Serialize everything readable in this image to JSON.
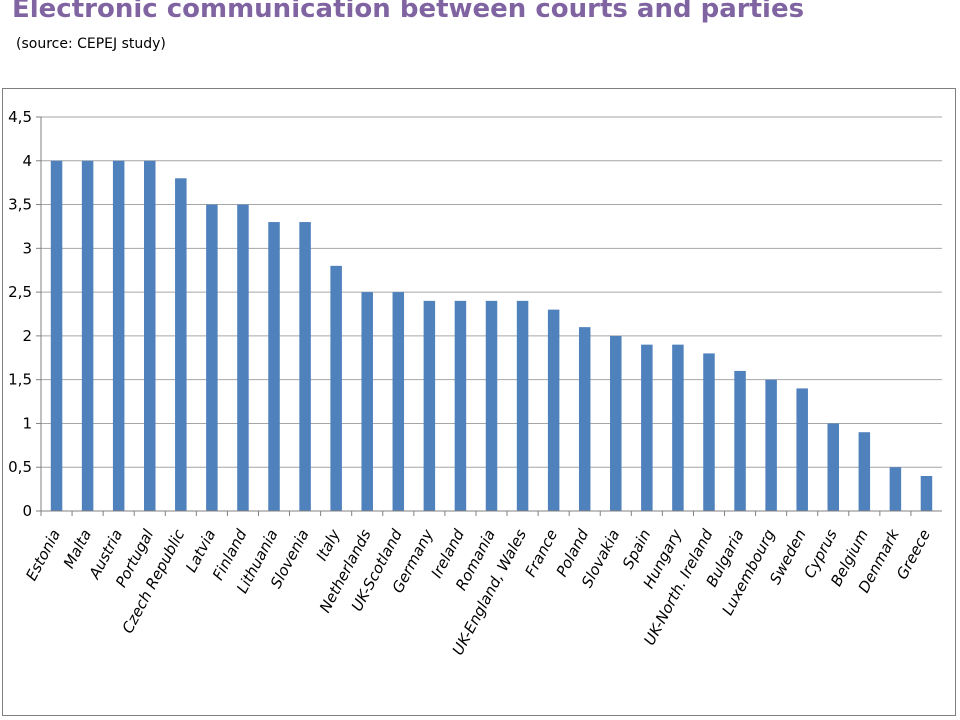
{
  "header": {
    "title": "Electronic communication between courts and parties",
    "subtitle": "(source: CEPEJ study)"
  },
  "chart_data": {
    "type": "bar",
    "title": "",
    "xlabel": "",
    "ylabel": "",
    "ylim": [
      0,
      4.5
    ],
    "yticks": [
      "0",
      "0,5",
      "1",
      "1,5",
      "2",
      "2,5",
      "3",
      "3,5",
      "4",
      "4,5"
    ],
    "grid": true,
    "bar_color": "#4F81BD",
    "categories": [
      "Estonia",
      "Malta",
      "Austria",
      "Portugal",
      "Czech Republic",
      "Latvia",
      "Finland",
      "Lithuania",
      "Slovenia",
      "Italy",
      "Netherlands",
      "UK-Scotland",
      "Germany",
      "Ireland",
      "Romania",
      "UK-England,  Wales",
      "France",
      "Poland",
      "Slovakia",
      "Spain",
      "Hungary",
      "UK-North. Ireland",
      "Bulgaria",
      "Luxembourg",
      "Sweden",
      "Cyprus",
      "Belgium",
      "Denmark",
      "Greece"
    ],
    "values": [
      4,
      4,
      4,
      4,
      3.8,
      3.5,
      3.5,
      3.3,
      3.3,
      2.8,
      2.5,
      2.5,
      2.4,
      2.4,
      2.4,
      2.4,
      2.3,
      2.1,
      2,
      1.9,
      1.9,
      1.8,
      1.6,
      1.5,
      1.4,
      1,
      0.9,
      0.5,
      0.4
    ]
  }
}
